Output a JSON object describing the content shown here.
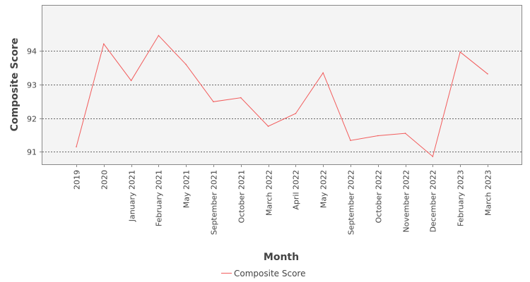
{
  "chart_data": {
    "type": "line",
    "title": "",
    "xlabel": "Month",
    "ylabel": "Composite Score",
    "categories": [
      "2019",
      "2020",
      "January 2021",
      "February 2021",
      "May 2021",
      "September 2021",
      "October 2021",
      "March 2022",
      "April 2022",
      "May 2022",
      "September 2022",
      "October 2022",
      "November 2022",
      "December 2022",
      "February 2023",
      "March 2023"
    ],
    "series": [
      {
        "name": "Composite Score",
        "color": "#f25c5c",
        "values": [
          91.15,
          94.21,
          93.12,
          94.46,
          93.6,
          92.49,
          92.61,
          91.76,
          92.14,
          93.35,
          91.34,
          91.48,
          91.55,
          90.86,
          93.97,
          93.32
        ]
      }
    ],
    "ylim": [
      90.63,
      95.35
    ],
    "yticks": [
      91,
      92,
      93,
      94
    ],
    "grid": true,
    "grid_color": "#666666",
    "plot_background": "#f4f4f4",
    "legend_position": "bottom"
  }
}
